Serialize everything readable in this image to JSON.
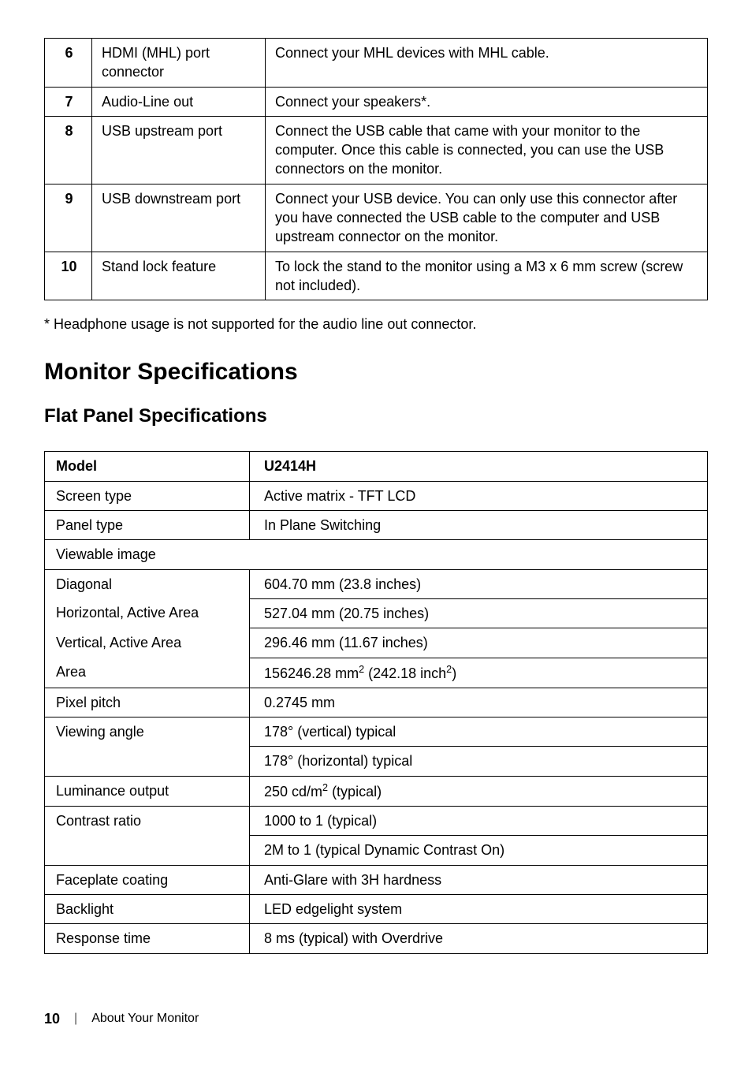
{
  "table1": {
    "rows": [
      {
        "n": "6",
        "label": "HDMI (MHL) port connector",
        "desc": "Connect your MHL devices with MHL cable."
      },
      {
        "n": "7",
        "label": "Audio-Line out",
        "desc": "Connect your speakers*."
      },
      {
        "n": "8",
        "label": "USB upstream port",
        "desc": "Connect the USB cable that came with your monitor to the computer. Once this cable is connected, you can use the USB connectors on the monitor."
      },
      {
        "n": "9",
        "label": "USB downstream port",
        "desc": "Connect your USB device. You can only use this connector after you have connected the USB cable to the computer and USB upstream connector on the monitor."
      },
      {
        "n": "10",
        "label": "Stand lock feature",
        "desc": "To lock the stand to the monitor using a M3 x 6 mm screw (screw not included)."
      }
    ]
  },
  "footnote": "* Headphone usage is not supported for the audio line out connector.",
  "heading1": "Monitor Specifications",
  "heading2": "Flat Panel Specifications",
  "table2": {
    "header": {
      "c1": "Model",
      "c2": "U2414H"
    },
    "rows": [
      {
        "c1": "Screen type",
        "c2": "Active matrix - TFT LCD"
      },
      {
        "c1": "Panel type",
        "c2": "In Plane Switching"
      }
    ],
    "span_row": "Viewable image",
    "viewable": [
      {
        "c1": "Diagonal",
        "c2": "604.70 mm (23.8 inches)"
      },
      {
        "c1": "Horizontal, Active Area",
        "c2": "527.04 mm (20.75 inches)"
      },
      {
        "c1": "Vertical, Active Area",
        "c2": "296.46 mm (11.67 inches)"
      }
    ],
    "area_label": "Area",
    "area_val_a": "156246.28 mm",
    "area_val_b": " (242.18 inch",
    "area_val_c": ")",
    "rest": [
      {
        "c1": "Pixel pitch",
        "c2": "0.2745 mm"
      },
      {
        "c1": "Viewing angle",
        "c2a": "178° (vertical) typical",
        "c2b": "178° (horizontal) typical"
      }
    ],
    "lum_label": "Luminance output",
    "lum_a": "250 cd/m",
    "lum_b": " (typical)",
    "contrast": {
      "c1": "Contrast ratio",
      "c2a": "1000 to 1 (typical)",
      "c2b": "2M to 1 (typical Dynamic Contrast On)"
    },
    "tail": [
      {
        "c1": "Faceplate coating",
        "c2": "Anti-Glare with 3H hardness"
      },
      {
        "c1": "Backlight",
        "c2": "LED edgelight system"
      },
      {
        "c1": "Response time",
        "c2": "8 ms (typical) with Overdrive"
      }
    ]
  },
  "footer": {
    "page": "10",
    "section": "About Your Monitor"
  }
}
